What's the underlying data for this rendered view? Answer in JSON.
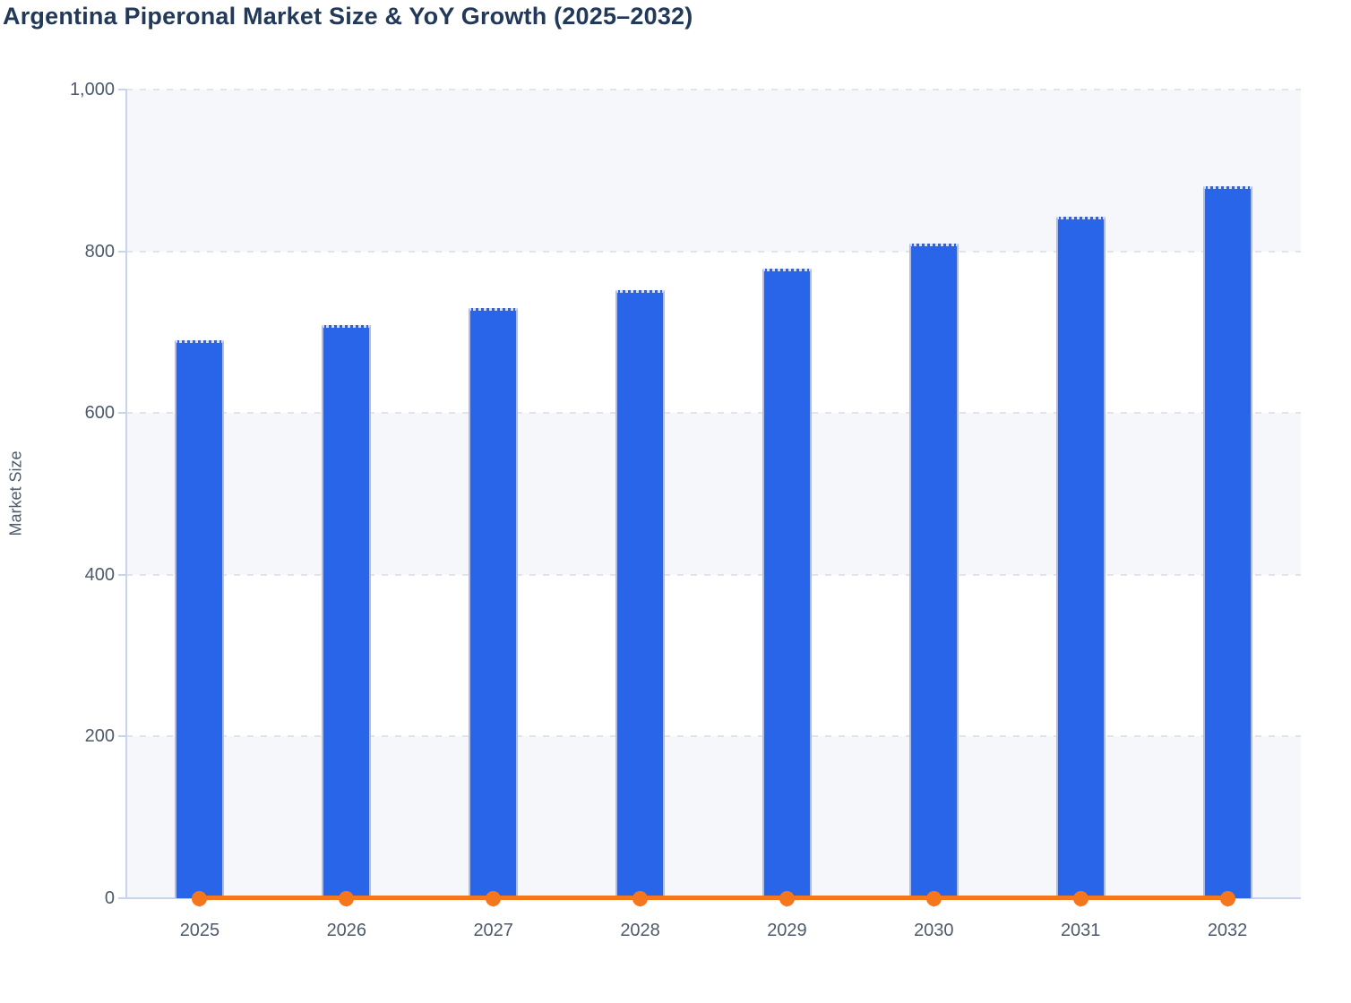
{
  "chart_data": {
    "type": "bar",
    "title": "Argentina Piperonal Market Size & YoY Growth (2025–2032)",
    "ylabel": "Market Size",
    "xlabel": "",
    "categories": [
      "2025",
      "2026",
      "2027",
      "2028",
      "2029",
      "2030",
      "2031",
      "2032"
    ],
    "series": [
      {
        "name": "Market Size",
        "kind": "bar",
        "values": [
          690,
          709,
          730,
          752,
          779,
          809,
          843,
          880
        ]
      },
      {
        "name": "YoY Growth",
        "kind": "line",
        "values": [
          0,
          0,
          0,
          0,
          0,
          0,
          0,
          0
        ],
        "plotted_on": "baseline"
      }
    ],
    "ylim": [
      0,
      1000
    ],
    "yticks": [
      {
        "value": 0,
        "label": "0"
      },
      {
        "value": 200,
        "label": "200"
      },
      {
        "value": 400,
        "label": "400"
      },
      {
        "value": 600,
        "label": "600"
      },
      {
        "value": 800,
        "label": "800"
      },
      {
        "value": 1000,
        "label": "1,000"
      }
    ],
    "grid": "dashed horizontal lines every 200 with alternating background bands",
    "legend": "none"
  },
  "colors": {
    "bar_fill": "#2865e8",
    "bar_edge": "#a9bcf3",
    "bar_cap": "#d4defc",
    "line": "#f5771d",
    "band": "#f6f7fa",
    "band_alt": "#ffffff",
    "grid": "#e2e4eb",
    "axis": "#c9d3f0",
    "tick_text": "#4d5a6b",
    "title_text": "#22395a"
  }
}
